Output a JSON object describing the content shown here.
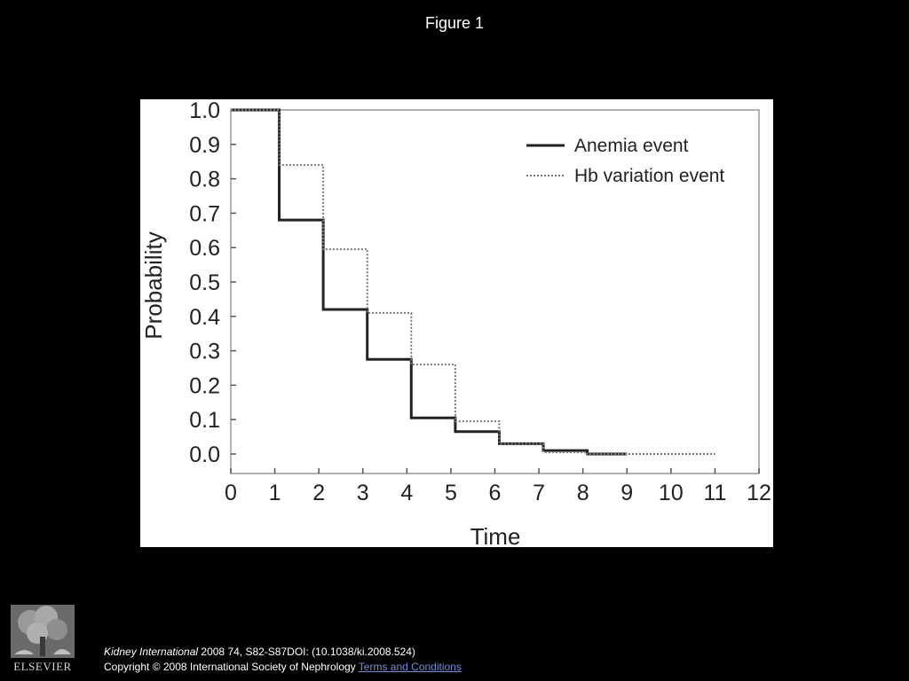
{
  "slide": {
    "title": "Figure 1"
  },
  "citation": {
    "journal": "Kidney International",
    "details": " 2008 74, S82-S87DOI: (10.1038/ki.2008.524)",
    "copyright": "Copyright © 2008 International Society of Nephrology ",
    "terms_link": "Terms and Conditions"
  },
  "logo": {
    "text": "ELSEVIER",
    "icon": "elsevier-tree-logo"
  },
  "chart_data": {
    "type": "line",
    "step": true,
    "xlabel": "Time",
    "ylabel": "Probability",
    "xlim": [
      0,
      12
    ],
    "ylim": [
      0,
      1
    ],
    "x_ticks": [
      "0",
      "1",
      "2",
      "3",
      "4",
      "5",
      "6",
      "7",
      "8",
      "9",
      "10",
      "11",
      "12"
    ],
    "y_ticks": [
      "0.0",
      "0.1",
      "0.2",
      "0.3",
      "0.4",
      "0.5",
      "0.6",
      "0.7",
      "0.8",
      "0.9",
      "1.0"
    ],
    "grid": false,
    "legend": "top-right",
    "series": [
      {
        "name": "Anemia event",
        "style": "solid",
        "color": "#222222",
        "x": [
          0,
          1.1,
          2.1,
          3.1,
          4.1,
          5.1,
          6.1,
          7.1,
          8.1,
          9.0
        ],
        "y": [
          1.0,
          0.68,
          0.42,
          0.275,
          0.105,
          0.065,
          0.03,
          0.01,
          0.0,
          0.0
        ]
      },
      {
        "name": "Hb variation event",
        "style": "dotted",
        "color": "#777777",
        "x": [
          0,
          1.1,
          2.1,
          3.1,
          4.1,
          5.1,
          6.1,
          7.1,
          8.1,
          11.0
        ],
        "y": [
          1.0,
          0.84,
          0.595,
          0.41,
          0.26,
          0.095,
          0.03,
          0.005,
          0.0,
          0.0
        ]
      }
    ]
  }
}
